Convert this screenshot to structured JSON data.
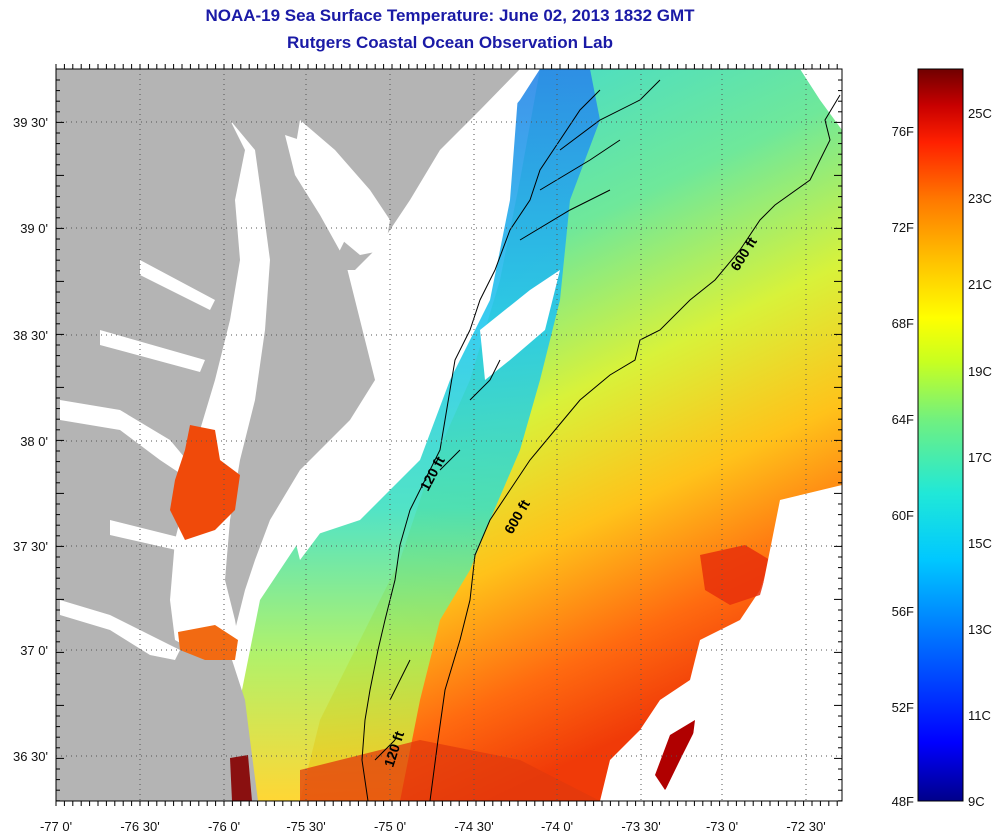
{
  "title": "NOAA-19 Sea Surface Temperature:  June 02, 2013 1832 GMT",
  "subtitle": "Rutgers Coastal Ocean Observation Lab",
  "lat_labels": [
    "39 30'",
    "39 0'",
    "38 30'",
    "38 0'",
    "37 30'",
    "37 0'",
    "36 30'"
  ],
  "lon_labels": [
    "-77 0'",
    "-76 30'",
    "-76 0'",
    "-75 30'",
    "-75 0'",
    "-74 30'",
    "-74 0'",
    "-73 30'",
    "-73 0'",
    "-72 30'"
  ],
  "contour_labels": [
    "600 ft",
    "120 ft",
    "600 ft",
    "120 ft"
  ],
  "colorbar": {
    "fahrenheit": [
      "76F",
      "72F",
      "68F",
      "64F",
      "60F",
      "56F",
      "52F",
      "48F"
    ],
    "celsius": [
      "25C",
      "23C",
      "21C",
      "19C",
      "17C",
      "15C",
      "13C",
      "11C",
      "9C"
    ],
    "colors": [
      "#00008a",
      "#0000ff",
      "#0070ff",
      "#00c8ff",
      "#20e8d8",
      "#70f080",
      "#c8ff20",
      "#ffff00",
      "#ffc000",
      "#ff7a00",
      "#ff2000",
      "#c80000",
      "#700000"
    ]
  },
  "colors": {
    "land": "#b4b4b4",
    "title": "#1a1aa6",
    "no_data": "#ffffff"
  }
}
